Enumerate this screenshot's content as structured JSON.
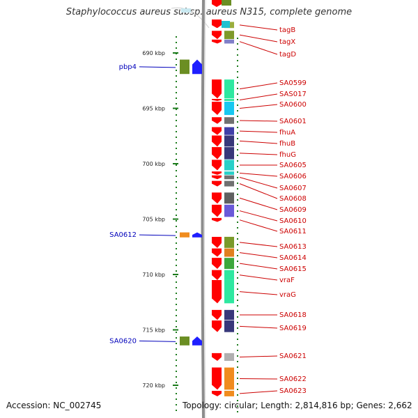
{
  "header": {
    "title": "Staphylococcus aureus subsp. aureus N315, complete genome"
  },
  "footer": {
    "accession": "Accession: NC_002745",
    "summary": "Topology: circular; Length: 2,814,816 bp; Genes: 2,662"
  },
  "scale": {
    "ticks": [
      {
        "label": "690 kbp",
        "kb": 690
      },
      {
        "label": "695 kbp",
        "kb": 695
      },
      {
        "label": "700 kbp",
        "kb": 700
      },
      {
        "label": "705 kbp",
        "kb": 705
      },
      {
        "label": "710 kbp",
        "kb": 710
      },
      {
        "label": "715 kbp",
        "kb": 715
      },
      {
        "label": "720 kbp",
        "kb": 720
      }
    ]
  },
  "colors": {
    "forward_label": "#cc0000",
    "reverse_label": "#0000bb",
    "backbone": "#8c8c8c",
    "tick": "#1a7a1a"
  },
  "genes": [
    {
      "name": "tagB",
      "strand": "+",
      "start_kb": 687.2,
      "end_kb": 687.75,
      "color": "#6b8e23",
      "bar": "#9aad3c"
    },
    {
      "name": "tagX",
      "strand": "+",
      "start_kb": 688.0,
      "end_kb": 688.75,
      "color": "#6b8e23",
      "bar": "#7f9a2a"
    },
    {
      "name": "tagD",
      "strand": "+",
      "start_kb": 688.8,
      "end_kb": 689.15,
      "color": "#6b8e23",
      "bar": "#8080c8"
    },
    {
      "name": "pbp4",
      "strand": "-",
      "start_kb": 690.6,
      "end_kb": 691.9,
      "color": "#1f1fff",
      "bar": "#6b8e23"
    },
    {
      "name": "SA0599",
      "strand": "+",
      "start_kb": 692.4,
      "end_kb": 694.1,
      "color": "#2ee8a0",
      "bar": "#2ee8a0"
    },
    {
      "name": "SAS017",
      "strand": "+",
      "start_kb": 694.15,
      "end_kb": 694.3,
      "color": "#2ee8a0",
      "bar": "#2ee8a0"
    },
    {
      "name": "SA0600",
      "strand": "+",
      "start_kb": 694.4,
      "end_kb": 695.6,
      "color": "#18c8f0",
      "bar": "#18c8f0"
    },
    {
      "name": "SA0601",
      "strand": "+",
      "start_kb": 695.8,
      "end_kb": 696.4,
      "color": "#707070",
      "bar": "#707070"
    },
    {
      "name": "fhuA",
      "strand": "+",
      "start_kb": 696.7,
      "end_kb": 697.4,
      "color": "#1414c8",
      "bar": "#4040a8"
    },
    {
      "name": "fhuB",
      "strand": "+",
      "start_kb": 697.45,
      "end_kb": 698.45,
      "color": "#38387a",
      "bar": "#38387a"
    },
    {
      "name": "fhuG",
      "strand": "+",
      "start_kb": 698.5,
      "end_kb": 699.6,
      "color": "#38387a",
      "bar": "#38387a"
    },
    {
      "name": "SA0605",
      "strand": "+",
      "start_kb": 699.65,
      "end_kb": 700.6,
      "color": "#28d0c8",
      "bar": "#28d0c8"
    },
    {
      "name": "SA0606",
      "strand": "+",
      "start_kb": 700.7,
      "end_kb": 701.0,
      "color": "#28d0c8",
      "bar": "#28d0c8"
    },
    {
      "name": "SA0607",
      "strand": "+",
      "start_kb": 701.05,
      "end_kb": 701.4,
      "color": "#707070",
      "bar": "#707070"
    },
    {
      "name": "SA0608",
      "strand": "+",
      "start_kb": 701.55,
      "end_kb": 702.05,
      "color": "#707070",
      "bar": "#707070"
    },
    {
      "name": "SA0609",
      "strand": "+",
      "start_kb": 702.6,
      "end_kb": 703.6,
      "color": "#505050",
      "bar": "#606060"
    },
    {
      "name": "SA0610",
      "strand": "+",
      "start_kb": 703.7,
      "end_kb": 704.8,
      "color": "#5a5ad8",
      "bar": "#6a5ad8"
    },
    {
      "name": "SA0611",
      "strand": "+",
      "start_kb": 704.9,
      "end_kb": 705.25,
      "color": "#707070",
      "bar": "#ffffff"
    },
    {
      "name": "SA0612",
      "strand": "-",
      "start_kb": 706.2,
      "end_kb": 706.65,
      "color": "#1f1fff",
      "bar": "#f08c1e"
    },
    {
      "name": "SA0613",
      "strand": "+",
      "start_kb": 706.6,
      "end_kb": 707.6,
      "color": "#28c8c8",
      "bar": "#7a9a2a"
    },
    {
      "name": "SA0614",
      "strand": "+",
      "start_kb": 707.65,
      "end_kb": 708.4,
      "color": "#3ca83c",
      "bar": "#e08020"
    },
    {
      "name": "SA0615",
      "strand": "+",
      "start_kb": 708.5,
      "end_kb": 709.5,
      "color": "#3ca83c",
      "bar": "#3ca83c"
    },
    {
      "name": "vraF",
      "strand": "+",
      "start_kb": 709.6,
      "end_kb": 710.5,
      "color": "#2ee8a0",
      "bar": "#2ee8a0"
    },
    {
      "name": "vraG",
      "strand": "+",
      "start_kb": 710.5,
      "end_kb": 712.6,
      "color": "#2ee8a0",
      "bar": "#2ee8a0"
    },
    {
      "name": "SA0618",
      "strand": "+",
      "start_kb": 713.2,
      "end_kb": 714.1,
      "color": "#38387a",
      "bar": "#38387a"
    },
    {
      "name": "SA0619",
      "strand": "+",
      "start_kb": 714.15,
      "end_kb": 715.2,
      "color": "#38387a",
      "bar": "#38387a"
    },
    {
      "name": "SA0620",
      "strand": "-",
      "start_kb": 715.6,
      "end_kb": 716.4,
      "color": "#1f1fff",
      "bar": "#6b8e23"
    },
    {
      "name": "SA0621",
      "strand": "+",
      "start_kb": 717.1,
      "end_kb": 717.8,
      "color": "#b0b0b0",
      "bar": "#b0b0b0"
    },
    {
      "name": "SA0622",
      "strand": "+",
      "start_kb": 718.4,
      "end_kb": 720.4,
      "color": "#f08c1e",
      "bar": "#f08c1e"
    },
    {
      "name": "SA0623",
      "strand": "+",
      "start_kb": 720.5,
      "end_kb": 721.0,
      "color": "#f08c1e",
      "bar": "#f08c1e"
    }
  ]
}
